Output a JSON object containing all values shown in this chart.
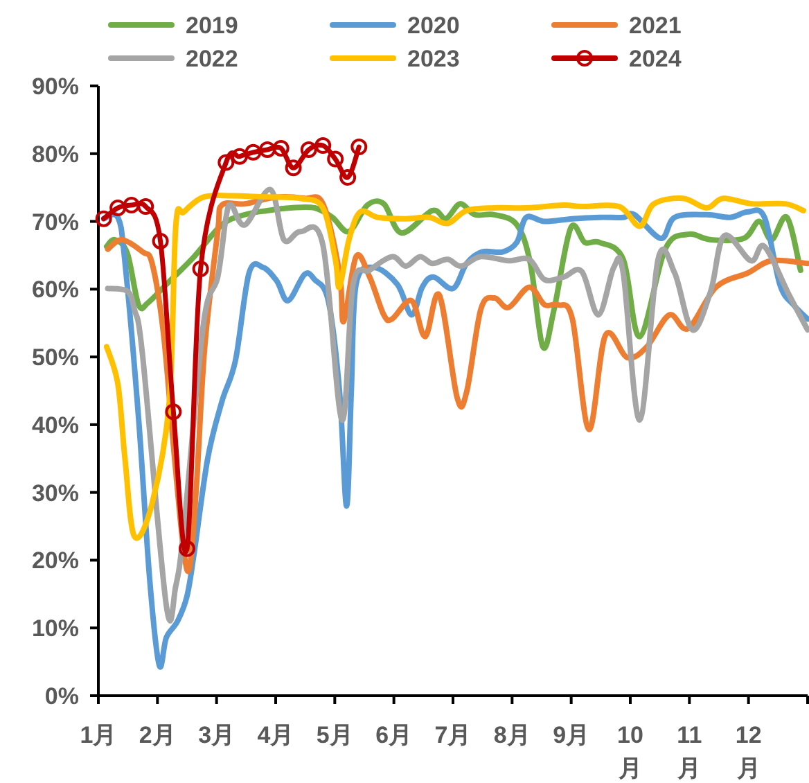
{
  "chart_data": {
    "type": "line",
    "legend": "top",
    "xlim": [
      1,
      13
    ],
    "ylim": [
      0,
      90
    ],
    "xticks": [
      {
        "value": 1,
        "label": "1月"
      },
      {
        "value": 2,
        "label": "2月"
      },
      {
        "value": 3,
        "label": "3月"
      },
      {
        "value": 4,
        "label": "4月"
      },
      {
        "value": 5,
        "label": "5月"
      },
      {
        "value": 6,
        "label": "6月"
      },
      {
        "value": 7,
        "label": "7月"
      },
      {
        "value": 8,
        "label": "8月"
      },
      {
        "value": 9,
        "label": "9月"
      },
      {
        "value": 10,
        "label": "10月"
      },
      {
        "value": 11,
        "label": "11月"
      },
      {
        "value": 12,
        "label": "12月"
      },
      {
        "value": 13,
        "label": null
      }
    ],
    "yticks": [
      {
        "value": 0,
        "label": "0%"
      },
      {
        "value": 10,
        "label": "10%"
      },
      {
        "value": 20,
        "label": "20%"
      },
      {
        "value": 30,
        "label": "30%"
      },
      {
        "value": 40,
        "label": "40%"
      },
      {
        "value": 50,
        "label": "50%"
      },
      {
        "value": 60,
        "label": "60%"
      },
      {
        "value": 70,
        "label": "70%"
      },
      {
        "value": 80,
        "label": "80%"
      },
      {
        "value": 90,
        "label": "90%"
      }
    ],
    "series": [
      {
        "name": "2019",
        "color": "#70ad47",
        "x": [
          1.14,
          1.28,
          1.49,
          1.68,
          1.84,
          2.15,
          2.62,
          3.09,
          3.48,
          3.86,
          4.26,
          4.66,
          4.96,
          5.24,
          5.55,
          5.83,
          6.13,
          6.65,
          6.88,
          7.12,
          7.37,
          7.7,
          8.08,
          8.31,
          8.52,
          8.71,
          8.99,
          9.23,
          9.48,
          9.88,
          10.16,
          10.59,
          10.98,
          11.36,
          11.92,
          12.18,
          12.39,
          12.65,
          12.88
        ],
        "values": [
          66.3,
          67.3,
          65.3,
          57.7,
          58,
          60.7,
          64.8,
          69.5,
          71,
          71.6,
          72,
          72,
          70.6,
          68.5,
          72.4,
          72.6,
          68.3,
          71.6,
          70.4,
          72.6,
          71,
          71,
          69.5,
          63.8,
          51.5,
          57,
          69,
          66.9,
          66.9,
          64.4,
          53,
          65.9,
          68.1,
          67.3,
          67.5,
          70,
          67.3,
          70.6,
          62.8
        ]
      },
      {
        "name": "2020",
        "color": "#5b9bd5",
        "x": [
          1.09,
          1.33,
          1.45,
          1.68,
          1.87,
          2.03,
          2.15,
          2.34,
          2.5,
          2.62,
          2.85,
          3.09,
          3.32,
          3.55,
          3.79,
          4.02,
          4.21,
          4.49,
          4.66,
          4.89,
          5.08,
          5.2,
          5.28,
          5.36,
          5.66,
          6.06,
          6.3,
          6.48,
          6.67,
          7.0,
          7.23,
          7.49,
          7.84,
          8.08,
          8.24,
          8.55,
          9.02,
          9.48,
          9.88,
          10.07,
          10.52,
          10.75,
          11.29,
          11.69,
          11.99,
          12.27,
          12.53,
          12.76,
          13.0
        ],
        "values": [
          70.4,
          70.6,
          64,
          41,
          17,
          4.5,
          8.6,
          11,
          14.7,
          21,
          35,
          43.4,
          49.5,
          62.4,
          63.2,
          61.2,
          58.3,
          62.2,
          61.4,
          58.3,
          45,
          28,
          45,
          60.7,
          63.2,
          60.7,
          56.2,
          60.3,
          61.8,
          60.1,
          63.8,
          65.5,
          65.5,
          66.9,
          70.6,
          70,
          70.4,
          70.6,
          70.6,
          71,
          67.5,
          70.6,
          71,
          70.6,
          71.4,
          70.6,
          60.7,
          57.7,
          55.6
        ]
      },
      {
        "name": "2021",
        "color": "#ed7d31",
        "x": [
          1.16,
          1.4,
          1.75,
          1.91,
          2.1,
          2.29,
          2.45,
          2.55,
          2.66,
          2.8,
          3.02,
          3.09,
          3.48,
          4.02,
          4.49,
          4.8,
          5.08,
          5.15,
          5.36,
          5.59,
          5.83,
          5.97,
          6.3,
          6.53,
          6.77,
          7.07,
          7.23,
          7.47,
          7.7,
          7.94,
          8.29,
          8.55,
          8.78,
          9.02,
          9.3,
          9.58,
          9.95,
          10.28,
          10.66,
          10.98,
          11.45,
          11.99,
          12.39,
          13.0
        ],
        "values": [
          65.9,
          67.3,
          65.5,
          63.8,
          53.6,
          35,
          21,
          19.2,
          31,
          51.5,
          68.5,
          72.4,
          72.6,
          73.6,
          73.4,
          72.6,
          62.4,
          55.2,
          64.8,
          61.8,
          56.2,
          55.6,
          58.3,
          53,
          59.1,
          44,
          44.8,
          57,
          58.7,
          57.3,
          60.3,
          57.7,
          57.7,
          55.6,
          39.3,
          53.2,
          49.9,
          51.5,
          56.2,
          54.2,
          60.3,
          62.4,
          64.2,
          63.8
        ]
      },
      {
        "name": "2022",
        "color": "#a5a5a5",
        "x": [
          1.16,
          1.49,
          1.61,
          1.75,
          2.15,
          2.31,
          2.45,
          2.78,
          3.02,
          3.16,
          3.25,
          3.48,
          3.91,
          4.14,
          4.42,
          4.8,
          5.12,
          5.31,
          5.59,
          5.97,
          6.2,
          6.44,
          6.65,
          6.91,
          7.14,
          7.47,
          7.94,
          8.29,
          8.55,
          8.87,
          9.18,
          9.46,
          9.72,
          9.88,
          10.16,
          10.47,
          10.75,
          11.05,
          11.36,
          11.59,
          12.04,
          12.27,
          12.69,
          13.0
        ],
        "values": [
          60.1,
          59.7,
          57,
          50.1,
          13.3,
          16.2,
          25,
          55,
          61.8,
          70.6,
          72.4,
          69.5,
          74.7,
          67.3,
          68.5,
          66.5,
          40.7,
          60.7,
          62.8,
          64.8,
          63.4,
          64.8,
          63.8,
          64.4,
          63.4,
          64.8,
          64.2,
          64.4,
          61.4,
          61.8,
          62.6,
          56.2,
          63.2,
          62.4,
          40.7,
          64.4,
          62.4,
          54,
          59.7,
          67.9,
          64.2,
          66.3,
          59.1,
          54
        ]
      },
      {
        "name": "2023",
        "color": "#ffc000",
        "x": [
          1.14,
          1.33,
          1.45,
          1.61,
          1.91,
          2.2,
          2.31,
          2.45,
          2.78,
          3.25,
          3.86,
          4.42,
          4.8,
          5.01,
          5.08,
          5.24,
          5.43,
          5.73,
          6.2,
          6.6,
          6.91,
          7.23,
          7.7,
          8.24,
          8.87,
          9.18,
          9.81,
          10.16,
          10.4,
          10.89,
          11.29,
          11.57,
          12.06,
          12.62,
          12.93
        ],
        "values": [
          51.5,
          46,
          35,
          23.5,
          28.4,
          43.4,
          69.3,
          71.4,
          73.6,
          73.8,
          73.6,
          73.4,
          72,
          64.4,
          60.3,
          67.3,
          71.4,
          70.6,
          70.4,
          70.6,
          69.7,
          71.6,
          72,
          72,
          72.4,
          72.2,
          72.2,
          69.3,
          72.6,
          73.4,
          72,
          73.4,
          72.6,
          72.6,
          71.6
        ]
      },
      {
        "name": "2024",
        "color": "#c00000",
        "marker": "circle",
        "x": [
          1.09,
          1.33,
          1.56,
          1.8,
          2.05,
          2.27,
          2.5,
          2.73,
          3.16,
          3.39,
          3.62,
          3.86,
          4.09,
          4.3,
          4.56,
          4.8,
          5.01,
          5.22,
          5.41
        ],
        "values": [
          70.4,
          72.0,
          72.4,
          72.2,
          67.1,
          41.9,
          21.7,
          63.0,
          78.7,
          79.6,
          80.2,
          80.6,
          80.8,
          77.9,
          80.6,
          81.2,
          79.2,
          76.5,
          81.0
        ]
      }
    ]
  }
}
